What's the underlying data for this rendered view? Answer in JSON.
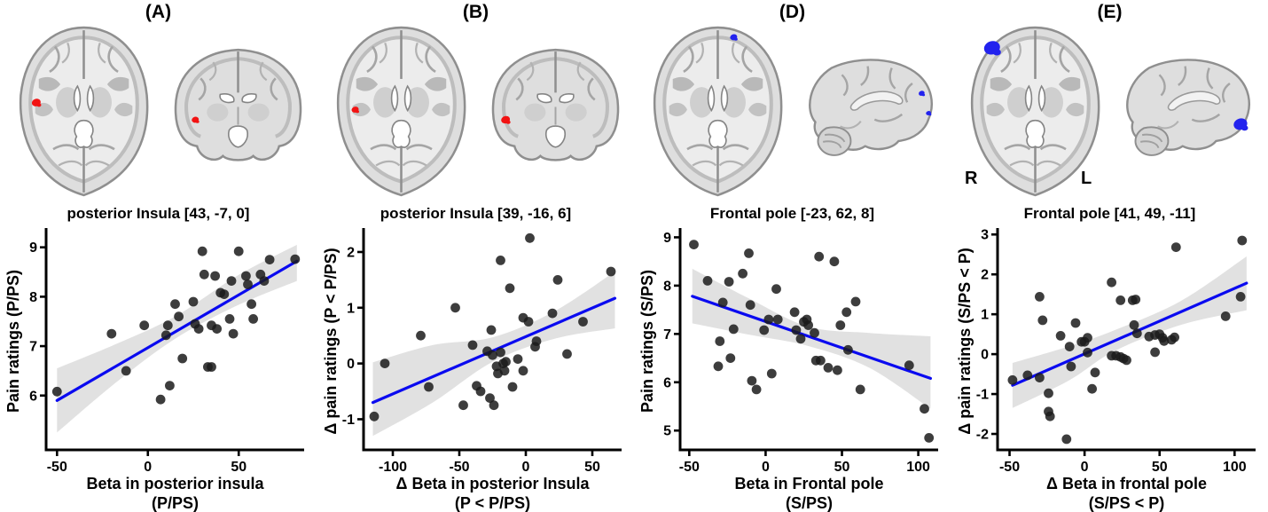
{
  "figure": {
    "background": "#ffffff"
  },
  "style": {
    "regression_line_color": "#0a0af0",
    "ci_band_color": "#e1e1e1",
    "point_color": "#1b1b1b",
    "axis_color": "#000000",
    "activation_red": "#f21313",
    "activation_blue": "#2222ee"
  },
  "panels": [
    {
      "letter": "(A)",
      "region_label": "posterior Insula [43, -7, 0]",
      "brains": [
        {
          "view": "axial",
          "spots": [
            {
              "fx": 0.17,
              "fy": 0.45,
              "r": 5,
              "color": "#f21313"
            }
          ]
        },
        {
          "view": "coronal",
          "spots": [
            {
              "fx": 0.2,
              "fy": 0.58,
              "r": 4,
              "color": "#f21313"
            }
          ]
        }
      ]
    },
    {
      "letter": "(B)",
      "region_label": "posterior Insula [39, -16, 6]",
      "brains": [
        {
          "view": "axial",
          "spots": [
            {
              "fx": 0.18,
              "fy": 0.49,
              "r": 4,
              "color": "#f21313"
            }
          ]
        },
        {
          "view": "coronal",
          "spots": [
            {
              "fx": 0.15,
              "fy": 0.58,
              "r": 5,
              "color": "#f21313"
            }
          ]
        }
      ]
    },
    {
      "letter": "(D)",
      "region_label": "Frontal pole [-23, 62, 8]",
      "brains": [
        {
          "view": "axial",
          "spots": [
            {
              "fx": 0.61,
              "fy": 0.08,
              "r": 4,
              "color": "#2222ee"
            }
          ]
        },
        {
          "view": "sagittal",
          "spots": [
            {
              "fx": 0.88,
              "fy": 0.34,
              "r": 3.5,
              "color": "#2222ee"
            },
            {
              "fx": 0.93,
              "fy": 0.52,
              "r": 3,
              "color": "#2222ee"
            }
          ]
        }
      ]
    },
    {
      "letter": "(E)",
      "region_label": "Frontal pole [41, 49, -11]",
      "orientation_labels": {
        "left_text": "R",
        "right_text": "L"
      },
      "brains": [
        {
          "view": "axial",
          "spots": [
            {
              "fx": 0.2,
              "fy": 0.14,
              "r": 9,
              "color": "#2222ee"
            }
          ]
        },
        {
          "view": "sagittal",
          "spots": [
            {
              "fx": 0.89,
              "fy": 0.62,
              "r": 8,
              "color": "#2222ee"
            }
          ]
        }
      ]
    }
  ],
  "chart_data": [
    {
      "type": "scatter",
      "panel": "(A)",
      "ylabel": "Pain ratings (P/PS)",
      "xlabel_line1": "Beta in posterior insula",
      "xlabel_line2": "(P/PS)",
      "xlim": [
        -56,
        86
      ],
      "ylim": [
        4.9,
        9.3
      ],
      "xticks": [
        -50,
        0,
        50
      ],
      "yticks": [
        6,
        7,
        8,
        9
      ],
      "regression": {
        "x": [
          -50,
          82
        ],
        "y": [
          5.9,
          8.72
        ]
      },
      "ci": {
        "x": [
          -50,
          -17,
          15,
          49,
          82
        ],
        "upper": [
          6.55,
          7.05,
          7.6,
          8.42,
          9.05
        ],
        "lower": [
          5.25,
          6.28,
          7.15,
          7.82,
          8.32
        ]
      },
      "points": [
        [
          -50,
          6.08
        ],
        [
          -20,
          7.25
        ],
        [
          -12,
          6.5
        ],
        [
          -2,
          7.42
        ],
        [
          7,
          5.92
        ],
        [
          10,
          7.22
        ],
        [
          11,
          7.42
        ],
        [
          12,
          6.2
        ],
        [
          15,
          7.85
        ],
        [
          17,
          7.6
        ],
        [
          19,
          6.75
        ],
        [
          25,
          7.9
        ],
        [
          26,
          7.45
        ],
        [
          28,
          7.35
        ],
        [
          30,
          8.92
        ],
        [
          31,
          8.45
        ],
        [
          33,
          6.58
        ],
        [
          35,
          6.58
        ],
        [
          35,
          7.42
        ],
        [
          37,
          8.42
        ],
        [
          38,
          7.35
        ],
        [
          40,
          8.08
        ],
        [
          42,
          8.05
        ],
        [
          45,
          7.55
        ],
        [
          46,
          8.32
        ],
        [
          47,
          7.25
        ],
        [
          50,
          8.92
        ],
        [
          54,
          8.42
        ],
        [
          55,
          8.25
        ],
        [
          57,
          7.85
        ],
        [
          58,
          7.55
        ],
        [
          62,
          8.45
        ],
        [
          64,
          8.32
        ],
        [
          67,
          8.75
        ],
        [
          81,
          8.76
        ]
      ]
    },
    {
      "type": "scatter",
      "panel": "(B)",
      "ylabel": "Δ pain ratings (P < P/PS)",
      "xlabel_line1": "Δ Beta in posterior Insula",
      "xlabel_line2": "(P < P/PS)",
      "xlim": [
        -122,
        72
      ],
      "ylim": [
        -1.55,
        2.35
      ],
      "xticks": [
        -100,
        -50,
        0,
        50
      ],
      "yticks": [
        -1,
        0,
        1,
        2
      ],
      "regression": {
        "x": [
          -115,
          67
        ],
        "y": [
          -0.7,
          1.17
        ]
      },
      "ci": {
        "x": [
          -115,
          -70,
          -25,
          21,
          67
        ],
        "upper": [
          0.02,
          0.33,
          0.47,
          0.93,
          1.65
        ],
        "lower": [
          -1.3,
          -0.7,
          0.03,
          0.44,
          0.63
        ]
      },
      "points": [
        [
          -114,
          -0.95
        ],
        [
          -106,
          0.0
        ],
        [
          -79,
          0.5
        ],
        [
          -73,
          -0.42
        ],
        [
          -53,
          1.0
        ],
        [
          -47,
          -0.75
        ],
        [
          -40,
          0.33
        ],
        [
          -37,
          -0.4
        ],
        [
          -34,
          -0.5
        ],
        [
          -29,
          0.22
        ],
        [
          -27,
          -0.62
        ],
        [
          -26,
          0.6
        ],
        [
          -25,
          0.15
        ],
        [
          -24,
          -0.75
        ],
        [
          -22,
          -0.05
        ],
        [
          -21,
          -0.18
        ],
        [
          -19,
          0.2
        ],
        [
          -19,
          1.85
        ],
        [
          -17,
          0.0
        ],
        [
          -16,
          -0.13
        ],
        [
          -15,
          0.03
        ],
        [
          -12,
          1.35
        ],
        [
          -10,
          -0.42
        ],
        [
          -6,
          0.08
        ],
        [
          -2,
          0.82
        ],
        [
          -2,
          -0.13
        ],
        [
          2,
          0.75
        ],
        [
          3,
          2.25
        ],
        [
          7,
          0.3
        ],
        [
          8,
          0.4
        ],
        [
          20,
          0.9
        ],
        [
          24,
          1.5
        ],
        [
          31,
          0.17
        ],
        [
          43,
          0.75
        ],
        [
          64,
          1.65
        ]
      ]
    },
    {
      "type": "scatter",
      "panel": "(D)",
      "ylabel": "Pain ratings (S/PS)",
      "xlabel_line1": "Beta in Frontal pole",
      "xlabel_line2": "(S/PS)",
      "xlim": [
        -56,
        113
      ],
      "ylim": [
        4.6,
        9.1
      ],
      "xticks": [
        -50,
        0,
        50,
        100
      ],
      "yticks": [
        5,
        6,
        7,
        8,
        9
      ],
      "regression": {
        "x": [
          -48,
          108
        ],
        "y": [
          7.78,
          6.08
        ]
      },
      "ci": {
        "x": [
          -48,
          -10,
          28,
          68,
          108
        ],
        "upper": [
          8.35,
          7.72,
          7.15,
          7.02,
          6.95
        ],
        "lower": [
          7.22,
          6.98,
          6.75,
          6.3,
          5.45
        ]
      },
      "points": [
        [
          -47,
          8.85
        ],
        [
          -38,
          8.1
        ],
        [
          -31,
          6.33
        ],
        [
          -30,
          6.85
        ],
        [
          -28,
          7.65
        ],
        [
          -24,
          8.08
        ],
        [
          -23,
          6.5
        ],
        [
          -21,
          7.1
        ],
        [
          -15,
          8.25
        ],
        [
          -11,
          8.67
        ],
        [
          -10,
          7.6
        ],
        [
          -9,
          6.03
        ],
        [
          -6,
          5.85
        ],
        [
          -1,
          7.08
        ],
        [
          2,
          7.3
        ],
        [
          4,
          6.18
        ],
        [
          7,
          7.93
        ],
        [
          8,
          7.3
        ],
        [
          19,
          7.45
        ],
        [
          20,
          7.08
        ],
        [
          23,
          6.9
        ],
        [
          25,
          7.25
        ],
        [
          27,
          7.3
        ],
        [
          28,
          7.18
        ],
        [
          32,
          7.02
        ],
        [
          33,
          6.45
        ],
        [
          35,
          8.6
        ],
        [
          36,
          6.45
        ],
        [
          41,
          6.3
        ],
        [
          45,
          8.5
        ],
        [
          47,
          6.25
        ],
        [
          49,
          7.18
        ],
        [
          53,
          7.45
        ],
        [
          54,
          6.67
        ],
        [
          59,
          7.67
        ],
        [
          62,
          5.85
        ],
        [
          94,
          6.35
        ],
        [
          104,
          5.45
        ],
        [
          107,
          4.85
        ]
      ]
    },
    {
      "type": "scatter",
      "panel": "(E)",
      "ylabel": "Δ pain ratings (S/PS < P)",
      "xlabel_line1": "Δ Beta in frontal pole",
      "xlabel_line2": "(S/PS < P)",
      "xlim": [
        -58,
        114
      ],
      "ylim": [
        -2.4,
        3.05
      ],
      "xticks": [
        -50,
        0,
        50,
        100
      ],
      "yticks": [
        -2,
        -1,
        0,
        1,
        2,
        3
      ],
      "regression": {
        "x": [
          -48,
          108
        ],
        "y": [
          -0.78,
          1.78
        ]
      },
      "ci": {
        "x": [
          -48,
          -10,
          20,
          64,
          108
        ],
        "upper": [
          -0.22,
          0.2,
          0.6,
          1.33,
          2.45
        ],
        "lower": [
          -1.35,
          -0.65,
          0.08,
          0.73,
          1.1
        ]
      },
      "points": [
        [
          -48,
          -0.65
        ],
        [
          -38,
          -0.53
        ],
        [
          -30,
          -0.59
        ],
        [
          -30,
          1.44
        ],
        [
          -28,
          0.85
        ],
        [
          -24,
          -0.98
        ],
        [
          -24,
          -1.44
        ],
        [
          -23,
          -1.56
        ],
        [
          -16,
          0.46
        ],
        [
          -12,
          -2.13
        ],
        [
          -10,
          0.19
        ],
        [
          -9,
          -0.31
        ],
        [
          -6,
          0.78
        ],
        [
          -2,
          0.31
        ],
        [
          0,
          0.31
        ],
        [
          2,
          0.41
        ],
        [
          2,
          0.04
        ],
        [
          5,
          -0.87
        ],
        [
          7,
          -0.46
        ],
        [
          18,
          1.8
        ],
        [
          18,
          -0.04
        ],
        [
          21,
          -0.04
        ],
        [
          24,
          1.35
        ],
        [
          24,
          -0.07
        ],
        [
          26,
          -0.11
        ],
        [
          28,
          -0.15
        ],
        [
          32,
          1.35
        ],
        [
          33,
          0.73
        ],
        [
          34,
          1.37
        ],
        [
          35,
          0.52
        ],
        [
          43,
          0.44
        ],
        [
          47,
          0.48
        ],
        [
          47,
          0.05
        ],
        [
          50,
          0.5
        ],
        [
          52,
          0.41
        ],
        [
          53,
          0.33
        ],
        [
          58,
          0.36
        ],
        [
          60,
          0.42
        ],
        [
          61,
          2.68
        ],
        [
          94,
          0.95
        ],
        [
          104,
          1.44
        ],
        [
          105,
          2.85
        ]
      ]
    }
  ]
}
